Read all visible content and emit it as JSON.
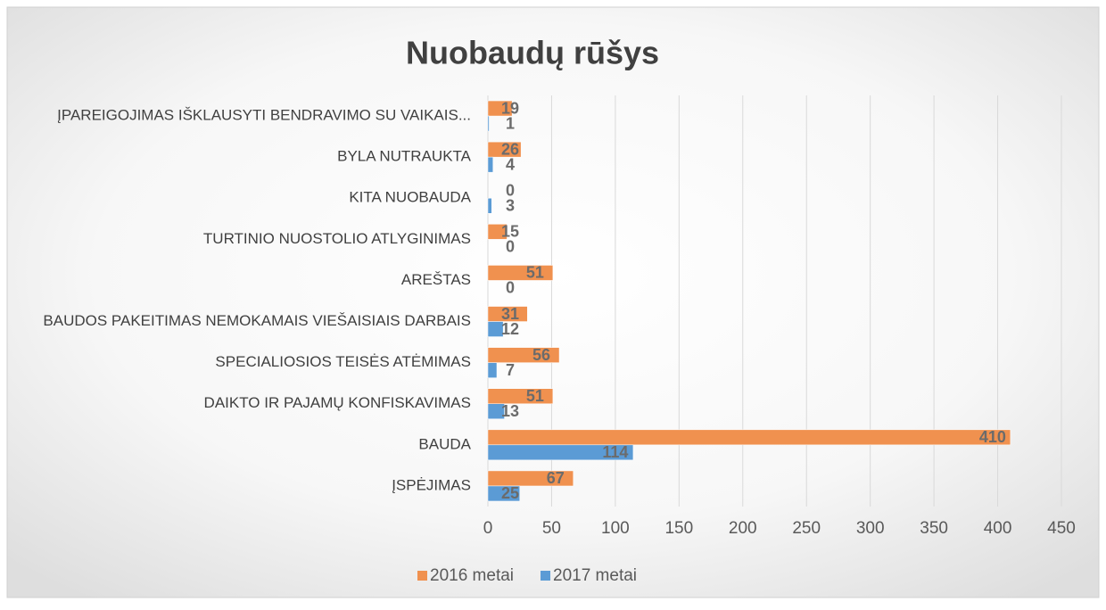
{
  "chart_data": {
    "type": "bar",
    "orientation": "horizontal",
    "title": "Nuobaudų rūšys",
    "categories": [
      "ĮPAREIGOJIMAS IŠKLAUSYTI BENDRAVIMO SU VAIKAIS...",
      "BYLA NUTRAUKTA",
      "KITA NUOBAUDA",
      "TURTINIO NUOSTOLIO ATLYGINIMAS",
      "AREŠTAS",
      "BAUDOS PAKEITIMAS NEMOKAMAIS VIEŠAISIAIS DARBAIS",
      "SPECIALIOSIOS TEISĖS ATĖMIMAS",
      "DAIKTO IR PAJAMŲ KONFISKAVIMAS",
      "BAUDA",
      "ĮSPĖJIMAS"
    ],
    "series": [
      {
        "name": "2016 metai",
        "color": "#f0914f",
        "values": [
          19,
          26,
          0,
          15,
          51,
          31,
          56,
          51,
          410,
          67
        ]
      },
      {
        "name": "2017 metai",
        "color": "#5b9bd5",
        "values": [
          1,
          4,
          3,
          0,
          0,
          12,
          7,
          13,
          114,
          25
        ]
      }
    ],
    "xlim": [
      0,
      450
    ],
    "xticks": [
      0,
      50,
      100,
      150,
      200,
      250,
      300,
      350,
      400,
      450
    ],
    "grid": true,
    "legend": "bottom"
  }
}
